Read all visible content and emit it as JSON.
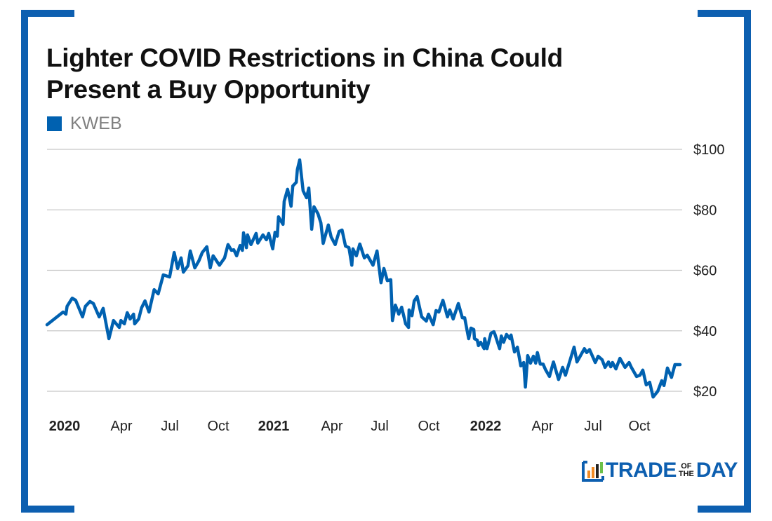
{
  "title_line1": "Lighter COVID Restrictions in China Could",
  "title_line2": "Present a Buy Opportunity",
  "logo": {
    "word1": "TRADE",
    "small1": "OF",
    "small2": "THE",
    "word2": "DAY"
  },
  "colors": {
    "series": "#0061b0",
    "frame": "#0d5fb0",
    "grid": "#c8c8c8"
  },
  "chart_data": {
    "type": "line",
    "title": "Lighter COVID Restrictions in China Could Present a Buy Opportunity",
    "legend": {
      "position": "top-left",
      "entries": [
        "KWEB"
      ]
    },
    "y_axis": {
      "range": [
        20,
        100
      ],
      "ticks": [
        "$100",
        "$80",
        "$60",
        "$40",
        "$20"
      ],
      "side": "right",
      "grid": true
    },
    "x_axis": {
      "ticks": [
        {
          "label": "2020",
          "date": "2020-01-01",
          "bold": true
        },
        {
          "label": "Apr",
          "date": "2020-04-01"
        },
        {
          "label": "Jul",
          "date": "2020-07-01"
        },
        {
          "label": "Oct",
          "date": "2020-10-01"
        },
        {
          "label": "2021",
          "date": "2021-01-01",
          "bold": true
        },
        {
          "label": "Apr",
          "date": "2021-04-01"
        },
        {
          "label": "Jul",
          "date": "2021-07-01"
        },
        {
          "label": "Oct",
          "date": "2021-10-01"
        },
        {
          "label": "2022",
          "date": "2022-01-01",
          "bold": true
        },
        {
          "label": "Apr",
          "date": "2022-04-01"
        },
        {
          "label": "Jul",
          "date": "2022-07-01"
        },
        {
          "label": "Oct",
          "date": "2022-10-01"
        }
      ],
      "range": [
        "2020-01-01",
        "2023-01-10"
      ]
    },
    "series": [
      {
        "name": "KWEB",
        "points": [
          [
            "2020-01-01",
            42.0
          ],
          [
            "2020-01-29",
            46.2
          ],
          [
            "2020-02-03",
            45.5
          ],
          [
            "2020-02-05",
            48.1
          ],
          [
            "2020-02-14",
            50.8
          ],
          [
            "2020-02-20",
            50.1
          ],
          [
            "2020-03-03",
            44.6
          ],
          [
            "2020-03-08",
            48.1
          ],
          [
            "2020-03-16",
            49.7
          ],
          [
            "2020-03-22",
            49.0
          ],
          [
            "2020-04-01",
            44.6
          ],
          [
            "2020-04-08",
            47.4
          ],
          [
            "2020-04-18",
            37.4
          ],
          [
            "2020-04-26",
            43.4
          ],
          [
            "2020-05-06",
            41.1
          ],
          [
            "2020-05-09",
            43.4
          ],
          [
            "2020-05-15",
            42.3
          ],
          [
            "2020-05-20",
            46.0
          ],
          [
            "2020-05-25",
            43.9
          ],
          [
            "2020-05-31",
            45.5
          ],
          [
            "2020-06-02",
            42.3
          ],
          [
            "2020-06-09",
            43.9
          ],
          [
            "2020-06-14",
            47.6
          ],
          [
            "2020-06-20",
            49.9
          ],
          [
            "2020-06-27",
            46.2
          ],
          [
            "2020-07-06",
            53.6
          ],
          [
            "2020-07-13",
            52.2
          ],
          [
            "2020-07-22",
            58.5
          ],
          [
            "2020-08-02",
            57.8
          ],
          [
            "2020-08-10",
            65.9
          ],
          [
            "2020-08-16",
            60.6
          ],
          [
            "2020-08-22",
            64.1
          ],
          [
            "2020-08-26",
            59.4
          ],
          [
            "2020-09-03",
            61.5
          ],
          [
            "2020-09-07",
            66.4
          ],
          [
            "2020-09-15",
            60.8
          ],
          [
            "2020-09-22",
            63.1
          ],
          [
            "2020-09-28",
            65.9
          ],
          [
            "2020-10-06",
            67.8
          ],
          [
            "2020-10-12",
            60.8
          ],
          [
            "2020-10-17",
            64.8
          ],
          [
            "2020-10-28",
            61.7
          ],
          [
            "2020-11-06",
            64.1
          ],
          [
            "2020-11-12",
            68.5
          ],
          [
            "2020-11-18",
            66.6
          ],
          [
            "2020-11-22",
            66.8
          ],
          [
            "2020-11-27",
            64.8
          ],
          [
            "2020-12-03",
            68.2
          ],
          [
            "2020-12-07",
            66.6
          ],
          [
            "2020-12-09",
            72.4
          ],
          [
            "2020-12-14",
            67.5
          ],
          [
            "2020-12-16",
            71.7
          ],
          [
            "2020-12-22",
            68.5
          ],
          [
            "2020-12-31",
            72.2
          ],
          [
            "2021-01-03",
            69.0
          ],
          [
            "2021-01-12",
            71.7
          ],
          [
            "2021-01-18",
            70.1
          ],
          [
            "2021-01-22",
            72.2
          ],
          [
            "2021-01-29",
            67.1
          ],
          [
            "2021-02-02",
            72.6
          ],
          [
            "2021-02-06",
            71.3
          ],
          [
            "2021-02-08",
            77.7
          ],
          [
            "2021-02-16",
            75.2
          ],
          [
            "2021-02-18",
            82.8
          ],
          [
            "2021-02-24",
            86.8
          ],
          [
            "2021-03-02",
            81.2
          ],
          [
            "2021-03-05",
            87.9
          ],
          [
            "2021-03-11",
            89.1
          ],
          [
            "2021-03-13",
            93.3
          ],
          [
            "2021-03-17",
            96.5
          ],
          [
            "2021-03-23",
            86.3
          ],
          [
            "2021-03-29",
            84.0
          ],
          [
            "2021-04-02",
            87.2
          ],
          [
            "2021-04-07",
            73.6
          ],
          [
            "2021-04-11",
            81.0
          ],
          [
            "2021-04-18",
            78.7
          ],
          [
            "2021-04-23",
            75.7
          ],
          [
            "2021-04-27",
            68.9
          ],
          [
            "2021-05-06",
            75.0
          ],
          [
            "2021-05-11",
            71.0
          ],
          [
            "2021-05-18",
            68.5
          ],
          [
            "2021-05-25",
            72.9
          ],
          [
            "2021-05-30",
            73.3
          ],
          [
            "2021-06-05",
            68.0
          ],
          [
            "2021-06-11",
            67.5
          ],
          [
            "2021-06-16",
            61.7
          ],
          [
            "2021-06-18",
            67.1
          ],
          [
            "2021-06-24",
            64.8
          ],
          [
            "2021-06-30",
            68.7
          ],
          [
            "2021-07-08",
            64.1
          ],
          [
            "2021-07-13",
            65.0
          ],
          [
            "2021-07-23",
            61.7
          ],
          [
            "2021-07-30",
            66.4
          ],
          [
            "2021-08-06",
            55.9
          ],
          [
            "2021-08-11",
            60.6
          ],
          [
            "2021-08-17",
            56.6
          ],
          [
            "2021-08-23",
            56.9
          ],
          [
            "2021-08-26",
            43.4
          ],
          [
            "2021-08-31",
            48.5
          ],
          [
            "2021-09-06",
            45.5
          ],
          [
            "2021-09-11",
            47.8
          ],
          [
            "2021-09-18",
            42.3
          ],
          [
            "2021-09-23",
            41.1
          ],
          [
            "2021-09-24",
            46.9
          ],
          [
            "2021-09-29",
            45.0
          ],
          [
            "2021-10-03",
            49.9
          ],
          [
            "2021-10-08",
            51.3
          ],
          [
            "2021-10-16",
            44.6
          ],
          [
            "2021-10-24",
            43.2
          ],
          [
            "2021-10-28",
            45.5
          ],
          [
            "2021-11-05",
            42.0
          ],
          [
            "2021-11-10",
            46.7
          ],
          [
            "2021-11-15",
            46.2
          ],
          [
            "2021-11-22",
            50.1
          ],
          [
            "2021-11-30",
            44.6
          ],
          [
            "2021-12-04",
            46.9
          ],
          [
            "2021-12-10",
            43.9
          ],
          [
            "2021-12-19",
            49.0
          ],
          [
            "2021-12-26",
            44.3
          ],
          [
            "2021-12-30",
            44.3
          ],
          [
            "2022-01-06",
            37.4
          ],
          [
            "2022-01-10",
            40.9
          ],
          [
            "2022-01-15",
            40.4
          ],
          [
            "2022-01-16",
            37.4
          ],
          [
            "2022-01-21",
            36.9
          ],
          [
            "2022-01-23",
            35.1
          ],
          [
            "2022-01-27",
            36.2
          ],
          [
            "2022-02-02",
            34.1
          ],
          [
            "2022-02-03",
            37.4
          ],
          [
            "2022-02-07",
            34.1
          ],
          [
            "2022-02-14",
            39.2
          ],
          [
            "2022-02-19",
            39.7
          ],
          [
            "2022-02-21",
            38.8
          ],
          [
            "2022-03-01",
            34.1
          ],
          [
            "2022-03-04",
            38.3
          ],
          [
            "2022-03-08",
            36.2
          ],
          [
            "2022-03-13",
            38.8
          ],
          [
            "2022-03-19",
            37.4
          ],
          [
            "2022-03-21",
            38.6
          ],
          [
            "2022-03-27",
            33.0
          ],
          [
            "2022-04-01",
            34.6
          ],
          [
            "2022-04-07",
            28.4
          ],
          [
            "2022-04-12",
            29.5
          ],
          [
            "2022-04-15",
            21.4
          ],
          [
            "2022-04-19",
            31.8
          ],
          [
            "2022-04-24",
            29.3
          ],
          [
            "2022-04-29",
            31.6
          ],
          [
            "2022-05-03",
            29.3
          ],
          [
            "2022-05-06",
            32.8
          ],
          [
            "2022-05-11",
            29.0
          ],
          [
            "2022-05-16",
            29.0
          ],
          [
            "2022-05-20",
            27.2
          ],
          [
            "2022-05-27",
            24.9
          ],
          [
            "2022-06-03",
            29.7
          ],
          [
            "2022-06-12",
            23.9
          ],
          [
            "2022-06-19",
            27.9
          ],
          [
            "2022-06-24",
            25.3
          ],
          [
            "2022-07-09",
            34.6
          ],
          [
            "2022-07-14",
            29.7
          ],
          [
            "2022-07-27",
            34.1
          ],
          [
            "2022-07-31",
            32.8
          ],
          [
            "2022-08-05",
            33.8
          ],
          [
            "2022-08-15",
            29.5
          ],
          [
            "2022-08-20",
            31.6
          ],
          [
            "2022-08-27",
            30.4
          ],
          [
            "2022-09-01",
            27.9
          ],
          [
            "2022-09-07",
            29.7
          ],
          [
            "2022-09-11",
            28.1
          ],
          [
            "2022-09-14",
            29.5
          ],
          [
            "2022-09-20",
            27.4
          ],
          [
            "2022-09-27",
            30.9
          ],
          [
            "2022-10-06",
            27.9
          ],
          [
            "2022-10-13",
            29.5
          ],
          [
            "2022-10-17",
            27.9
          ],
          [
            "2022-10-26",
            24.9
          ],
          [
            "2022-11-01",
            25.3
          ],
          [
            "2022-11-06",
            27.0
          ],
          [
            "2022-11-12",
            22.1
          ],
          [
            "2022-11-18",
            23.0
          ],
          [
            "2022-11-24",
            18.1
          ],
          [
            "2022-12-02",
            20.0
          ],
          [
            "2022-12-09",
            23.5
          ],
          [
            "2022-12-13",
            21.9
          ],
          [
            "2022-12-19",
            27.7
          ],
          [
            "2022-12-26",
            24.6
          ],
          [
            "2023-01-01",
            28.8
          ],
          [
            "2023-01-10",
            28.8
          ]
        ]
      }
    ]
  }
}
